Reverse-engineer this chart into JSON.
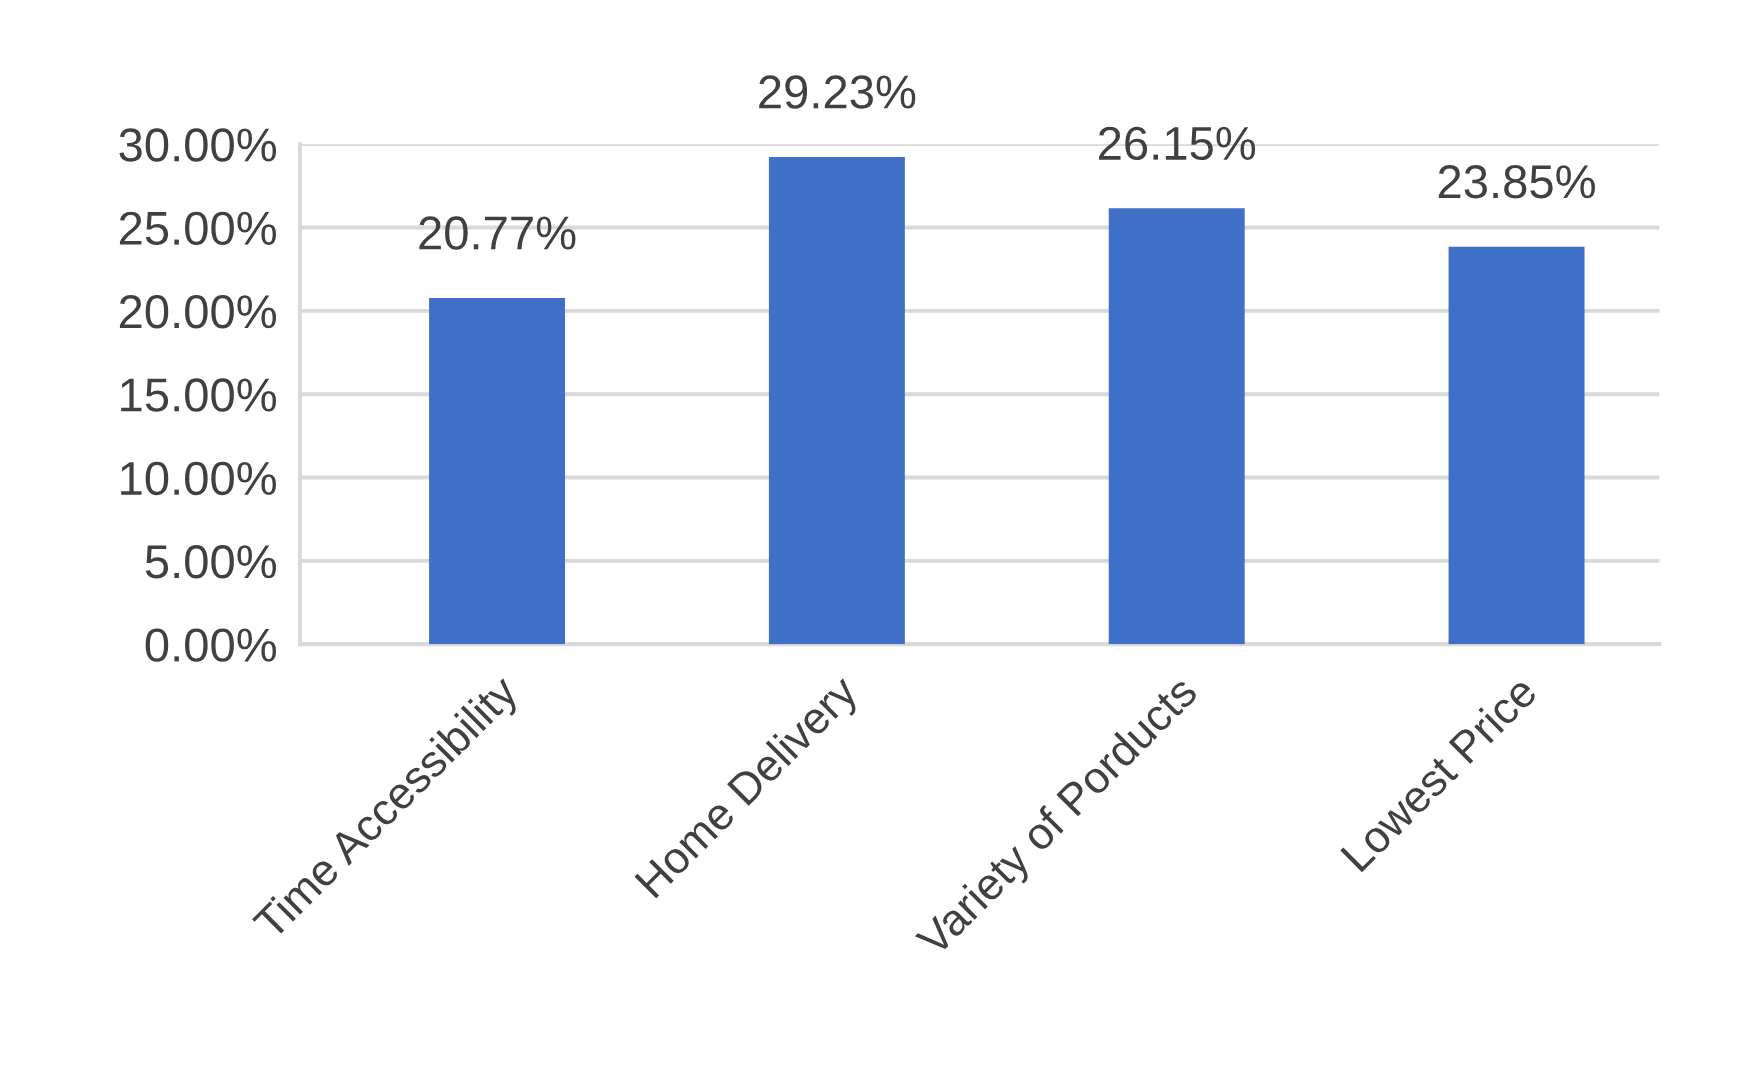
{
  "chart_data": {
    "type": "bar",
    "categories": [
      "Time Accessibility",
      "Home Delivery",
      "Variety of Porducts",
      "Lowest Price"
    ],
    "values": [
      20.77,
      29.23,
      26.15,
      23.85
    ],
    "value_labels": [
      "20.77%",
      "29.23%",
      "26.15%",
      "23.85%"
    ],
    "color": "#3f6fc6",
    "ylim": [
      0,
      30
    ],
    "yticks": [
      {
        "value": 0,
        "label": "0.00%"
      },
      {
        "value": 5,
        "label": "5.00%"
      },
      {
        "value": 10,
        "label": "10.00%"
      },
      {
        "value": 15,
        "label": "15.00%"
      },
      {
        "value": 20,
        "label": "20.00%"
      },
      {
        "value": 25,
        "label": "25.00%"
      },
      {
        "value": 30,
        "label": "30.00%"
      }
    ],
    "grid": "y"
  }
}
